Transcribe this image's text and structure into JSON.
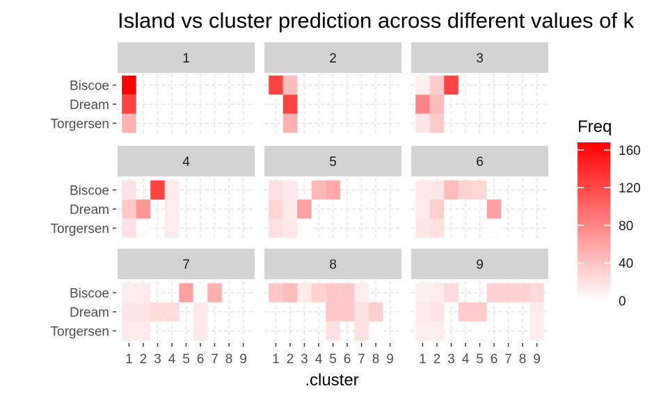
{
  "chart_data": {
    "type": "heatmap",
    "title": "Island vs cluster prediction across different values of k",
    "xlabel": ".cluster",
    "ylabel": "",
    "x_ticks": [
      "1",
      "2",
      "3",
      "4",
      "5",
      "6",
      "7",
      "8",
      "9"
    ],
    "y_categories": [
      "Torgersen",
      "Dream",
      "Biscoe"
    ],
    "facets": [
      {
        "label": "1",
        "cells": [
          {
            "island": "Torgersen",
            "cluster": 1,
            "freq": 52
          },
          {
            "island": "Dream",
            "cluster": 1,
            "freq": 124
          },
          {
            "island": "Biscoe",
            "cluster": 1,
            "freq": 168
          }
        ]
      },
      {
        "label": "2",
        "cells": [
          {
            "island": "Torgersen",
            "cluster": 2,
            "freq": 52
          },
          {
            "island": "Dream",
            "cluster": 2,
            "freq": 124
          },
          {
            "island": "Biscoe",
            "cluster": 1,
            "freq": 124
          },
          {
            "island": "Biscoe",
            "cluster": 2,
            "freq": 44
          }
        ]
      },
      {
        "label": "3",
        "cells": [
          {
            "island": "Torgersen",
            "cluster": 1,
            "freq": 17
          },
          {
            "island": "Torgersen",
            "cluster": 2,
            "freq": 35
          },
          {
            "island": "Dream",
            "cluster": 1,
            "freq": 80
          },
          {
            "island": "Dream",
            "cluster": 2,
            "freq": 44
          },
          {
            "island": "Biscoe",
            "cluster": 1,
            "freq": 10
          },
          {
            "island": "Biscoe",
            "cluster": 2,
            "freq": 34
          },
          {
            "island": "Biscoe",
            "cluster": 3,
            "freq": 124
          }
        ]
      },
      {
        "label": "4",
        "cells": [
          {
            "island": "Torgersen",
            "cluster": 1,
            "freq": 20
          },
          {
            "island": "Torgersen",
            "cluster": 2,
            "freq": 2
          },
          {
            "island": "Torgersen",
            "cluster": 4,
            "freq": 14
          },
          {
            "island": "Dream",
            "cluster": 1,
            "freq": 36
          },
          {
            "island": "Dream",
            "cluster": 2,
            "freq": 70
          },
          {
            "island": "Dream",
            "cluster": 4,
            "freq": 14
          },
          {
            "island": "Biscoe",
            "cluster": 1,
            "freq": 20
          },
          {
            "island": "Biscoe",
            "cluster": 3,
            "freq": 124
          },
          {
            "island": "Biscoe",
            "cluster": 4,
            "freq": 14
          }
        ]
      },
      {
        "label": "5",
        "cells": [
          {
            "island": "Torgersen",
            "cluster": 1,
            "freq": 20
          },
          {
            "island": "Torgersen",
            "cluster": 2,
            "freq": 15
          },
          {
            "island": "Torgersen",
            "cluster": 3,
            "freq": 2
          },
          {
            "island": "Dream",
            "cluster": 1,
            "freq": 28
          },
          {
            "island": "Dream",
            "cluster": 2,
            "freq": 14
          },
          {
            "island": "Dream",
            "cluster": 3,
            "freq": 62
          },
          {
            "island": "Biscoe",
            "cluster": 1,
            "freq": 20
          },
          {
            "island": "Biscoe",
            "cluster": 2,
            "freq": 15
          },
          {
            "island": "Biscoe",
            "cluster": 4,
            "freq": 46
          },
          {
            "island": "Biscoe",
            "cluster": 5,
            "freq": 56
          }
        ]
      },
      {
        "label": "6",
        "cells": [
          {
            "island": "Torgersen",
            "cluster": 1,
            "freq": 16
          },
          {
            "island": "Torgersen",
            "cluster": 2,
            "freq": 20
          },
          {
            "island": "Torgersen",
            "cluster": 6,
            "freq": 2
          },
          {
            "island": "Dream",
            "cluster": 1,
            "freq": 14
          },
          {
            "island": "Dream",
            "cluster": 2,
            "freq": 32
          },
          {
            "island": "Dream",
            "cluster": 6,
            "freq": 62
          },
          {
            "island": "Biscoe",
            "cluster": 1,
            "freq": 15
          },
          {
            "island": "Biscoe",
            "cluster": 2,
            "freq": 16
          },
          {
            "island": "Biscoe",
            "cluster": 3,
            "freq": 44
          },
          {
            "island": "Biscoe",
            "cluster": 4,
            "freq": 30
          },
          {
            "island": "Biscoe",
            "cluster": 5,
            "freq": 26
          }
        ]
      },
      {
        "label": "7",
        "cells": [
          {
            "island": "Torgersen",
            "cluster": 1,
            "freq": 13
          },
          {
            "island": "Torgersen",
            "cluster": 2,
            "freq": 13
          },
          {
            "island": "Torgersen",
            "cluster": 6,
            "freq": 14
          },
          {
            "island": "Dream",
            "cluster": 1,
            "freq": 17
          },
          {
            "island": "Dream",
            "cluster": 2,
            "freq": 17
          },
          {
            "island": "Dream",
            "cluster": 3,
            "freq": 24
          },
          {
            "island": "Dream",
            "cluster": 4,
            "freq": 24
          },
          {
            "island": "Dream",
            "cluster": 6,
            "freq": 14
          },
          {
            "island": "Biscoe",
            "cluster": 1,
            "freq": 11
          },
          {
            "island": "Biscoe",
            "cluster": 2,
            "freq": 13
          },
          {
            "island": "Biscoe",
            "cluster": 5,
            "freq": 62
          },
          {
            "island": "Biscoe",
            "cluster": 6,
            "freq": 2
          },
          {
            "island": "Biscoe",
            "cluster": 7,
            "freq": 52
          }
        ]
      },
      {
        "label": "8",
        "cells": [
          {
            "island": "Torgersen",
            "cluster": 5,
            "freq": 20
          },
          {
            "island": "Torgersen",
            "cluster": 7,
            "freq": 20
          },
          {
            "island": "Torgersen",
            "cluster": 8,
            "freq": 2
          },
          {
            "island": "Dream",
            "cluster": 5,
            "freq": 36
          },
          {
            "island": "Dream",
            "cluster": 6,
            "freq": 36
          },
          {
            "island": "Dream",
            "cluster": 7,
            "freq": 20
          },
          {
            "island": "Dream",
            "cluster": 8,
            "freq": 32
          },
          {
            "island": "Biscoe",
            "cluster": 1,
            "freq": 36
          },
          {
            "island": "Biscoe",
            "cluster": 2,
            "freq": 44
          },
          {
            "island": "Biscoe",
            "cluster": 3,
            "freq": 14
          },
          {
            "island": "Biscoe",
            "cluster": 4,
            "freq": 30
          },
          {
            "island": "Biscoe",
            "cluster": 5,
            "freq": 36
          },
          {
            "island": "Biscoe",
            "cluster": 6,
            "freq": 36
          },
          {
            "island": "Biscoe",
            "cluster": 7,
            "freq": 12
          }
        ]
      },
      {
        "label": "9",
        "cells": [
          {
            "island": "Torgersen",
            "cluster": 1,
            "freq": 11
          },
          {
            "island": "Torgersen",
            "cluster": 2,
            "freq": 11
          },
          {
            "island": "Torgersen",
            "cluster": 5,
            "freq": 2
          },
          {
            "island": "Torgersen",
            "cluster": 9,
            "freq": 12
          },
          {
            "island": "Dream",
            "cluster": 1,
            "freq": 14
          },
          {
            "island": "Dream",
            "cluster": 2,
            "freq": 17
          },
          {
            "island": "Dream",
            "cluster": 4,
            "freq": 34
          },
          {
            "island": "Dream",
            "cluster": 5,
            "freq": 34
          },
          {
            "island": "Dream",
            "cluster": 9,
            "freq": 12
          },
          {
            "island": "Biscoe",
            "cluster": 1,
            "freq": 10
          },
          {
            "island": "Biscoe",
            "cluster": 2,
            "freq": 12
          },
          {
            "island": "Biscoe",
            "cluster": 3,
            "freq": 24
          },
          {
            "island": "Biscoe",
            "cluster": 6,
            "freq": 30
          },
          {
            "island": "Biscoe",
            "cluster": 7,
            "freq": 30
          },
          {
            "island": "Biscoe",
            "cluster": 8,
            "freq": 30
          },
          {
            "island": "Biscoe",
            "cluster": 9,
            "freq": 24
          }
        ]
      }
    ],
    "legend": {
      "title": "Freq",
      "placement": "right",
      "ticks": [
        0,
        40,
        80,
        120,
        160
      ],
      "range": [
        0,
        168
      ],
      "low_color": "#FFFFFF",
      "high_color": "#FF0000"
    },
    "panel_grid": "white dashed",
    "strip_color": "#D3D3D3"
  }
}
